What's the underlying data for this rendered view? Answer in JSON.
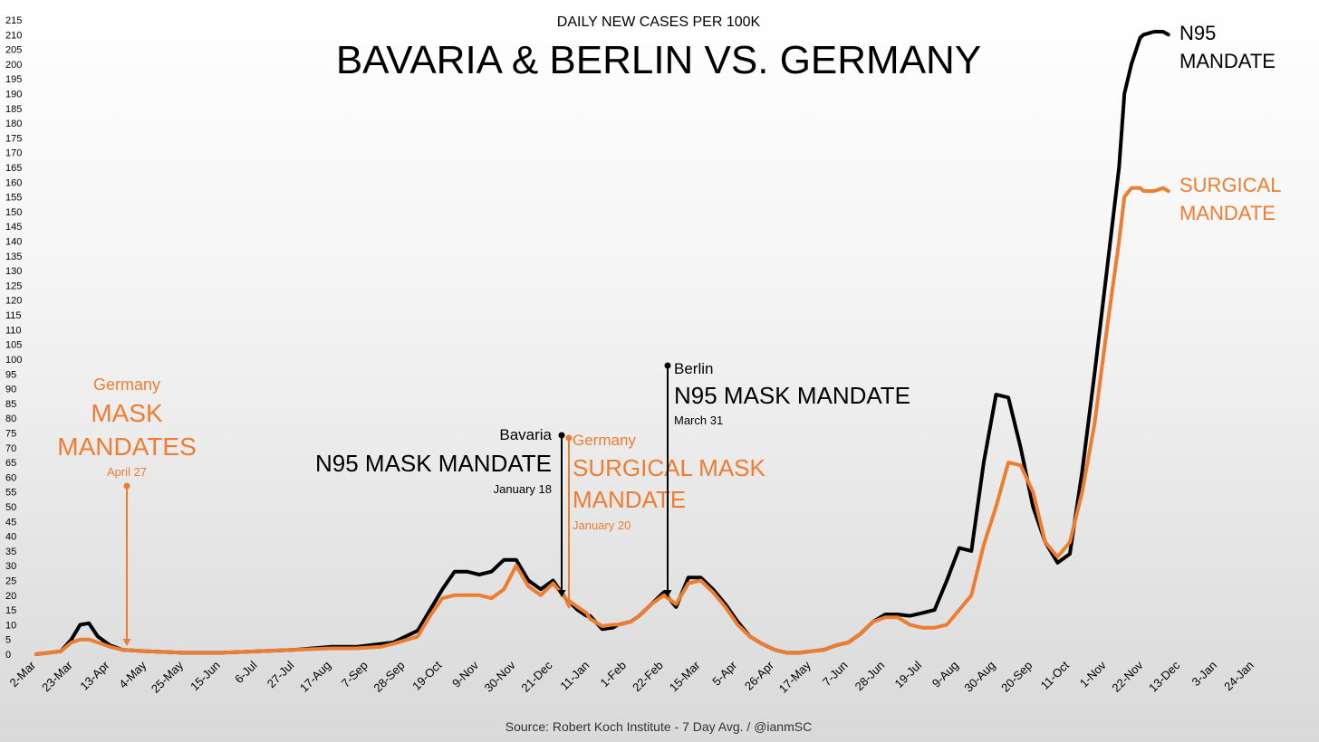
{
  "chart_data": {
    "type": "line",
    "subtitle": "DAILY NEW CASES PER 100K",
    "title": "BAVARIA & BERLIN VS. GERMANY",
    "source": "Source: Robert Koch Institute - 7 Day Avg. / @ianmSC",
    "ylim": [
      0,
      215
    ],
    "y_ticks": [
      0,
      5,
      10,
      15,
      20,
      25,
      30,
      35,
      40,
      45,
      50,
      55,
      60,
      65,
      70,
      75,
      80,
      85,
      90,
      95,
      100,
      105,
      110,
      115,
      120,
      125,
      130,
      135,
      140,
      145,
      150,
      155,
      160,
      165,
      170,
      175,
      180,
      185,
      190,
      195,
      200,
      205,
      210,
      215
    ],
    "x_ticks": [
      "2-Mar",
      "23-Mar",
      "13-Apr",
      "4-May",
      "25-May",
      "15-Jun",
      "6-Jul",
      "27-Jul",
      "17-Aug",
      "7-Sep",
      "28-Sep",
      "19-Oct",
      "9-Nov",
      "30-Nov",
      "21-Dec",
      "11-Jan",
      "1-Feb",
      "22-Feb",
      "15-Mar",
      "5-Apr",
      "26-Apr",
      "17-May",
      "7-Jun",
      "28-Jun",
      "19-Jul",
      "9-Aug",
      "30-Aug",
      "20-Sep",
      "11-Oct",
      "1-Nov",
      "22-Nov",
      "13-Dec",
      "3-Jan",
      "24-Jan"
    ],
    "colors": {
      "black_series": "#000000",
      "orange_series": "#ED7D31"
    },
    "series": [
      {
        "color": "#000000",
        "x": [
          0,
          14,
          20,
          25,
          30,
          35,
          42,
          49,
          63,
          84,
          105,
          126,
          147,
          168,
          182,
          196,
          203,
          217,
          224,
          231,
          238,
          245,
          252,
          259,
          266,
          273,
          280,
          287,
          294,
          301,
          308,
          313,
          315,
          322,
          328,
          331,
          338,
          343,
          350,
          357,
          364,
          371,
          378,
          385,
          392,
          399,
          406,
          413,
          420,
          427,
          434,
          441,
          448,
          455,
          462,
          469,
          476,
          483,
          490,
          497,
          504,
          511,
          518,
          525,
          532,
          539,
          546,
          553,
          560,
          567,
          574,
          581,
          588,
          595,
          602,
          609,
          616,
          619,
          623,
          628,
          630,
          636,
          641,
          644
        ],
        "values": [
          0,
          1,
          5,
          10,
          10.5,
          6,
          3,
          1.5,
          1,
          0.5,
          0.5,
          1,
          1.5,
          2.5,
          2.5,
          3.5,
          4,
          8,
          15,
          22,
          28,
          28,
          27,
          28,
          32,
          32,
          25,
          22,
          25,
          19,
          15,
          13,
          13,
          8.5,
          9,
          10,
          11,
          13,
          17,
          21,
          16,
          26,
          26,
          22,
          17,
          11,
          6,
          3.5,
          1.5,
          0.5,
          0.5,
          1,
          1.5,
          3,
          4,
          7,
          11,
          13.5,
          13.5,
          13,
          14,
          15,
          25,
          36,
          35,
          65,
          88,
          87,
          70,
          50,
          38,
          31,
          34,
          62,
          95,
          130,
          165,
          190,
          200,
          209,
          210,
          211,
          211,
          210
        ],
        "max_label": "211",
        "end_labels": [
          "N95",
          "MANDATE"
        ]
      },
      {
        "color": "#ED7D31",
        "x": [
          0,
          14,
          20,
          25,
          30,
          35,
          42,
          49,
          63,
          84,
          105,
          126,
          147,
          168,
          182,
          196,
          203,
          217,
          224,
          231,
          238,
          245,
          252,
          259,
          266,
          273,
          280,
          287,
          294,
          301,
          308,
          313,
          315,
          322,
          328,
          331,
          338,
          343,
          350,
          357,
          364,
          371,
          378,
          385,
          392,
          399,
          406,
          413,
          420,
          427,
          434,
          441,
          448,
          455,
          462,
          469,
          476,
          483,
          490,
          497,
          504,
          511,
          518,
          525,
          532,
          539,
          546,
          553,
          560,
          567,
          574,
          581,
          588,
          595,
          602,
          609,
          616,
          619,
          623,
          628,
          630,
          636,
          641,
          644
        ],
        "values": [
          0,
          1,
          4,
          5,
          5,
          4,
          2.5,
          1.5,
          1,
          0.5,
          0.5,
          1,
          1.5,
          2,
          2,
          2.5,
          3.5,
          6,
          13,
          19,
          20,
          20,
          20,
          19,
          22,
          30,
          23,
          20,
          24,
          19,
          16,
          14,
          12,
          9.5,
          10,
          10,
          11,
          13,
          17,
          20,
          17,
          24,
          25,
          21,
          16,
          10,
          6,
          3.5,
          1.5,
          0.5,
          0.5,
          1,
          1.5,
          3,
          4,
          7,
          11,
          12.5,
          12.5,
          10,
          9,
          9,
          10,
          15,
          20,
          37,
          50,
          65,
          64,
          55,
          38,
          33,
          38,
          55,
          78,
          110,
          140,
          155,
          158,
          158,
          157,
          157,
          158,
          157
        ],
        "max_label": "158",
        "end_labels": [
          "SURGICAL",
          "MANDATE"
        ]
      }
    ],
    "annotations": [
      {
        "color": "#ED7D31",
        "line1": "Germany",
        "line2": "MASK",
        "line3": "MANDATES",
        "date": "April 27"
      },
      {
        "color": "#000000",
        "line1": "Bavaria",
        "line2": "N95 MASK MANDATE",
        "date": "January 18"
      },
      {
        "color": "#ED7D31",
        "line1": "Germany",
        "line2": "SURGICAL MASK",
        "line3": "MANDATE",
        "date": "January 20"
      },
      {
        "color": "#000000",
        "line1": "Berlin",
        "line2": "N95 MASK MANDATE",
        "date": "March 31"
      }
    ]
  }
}
